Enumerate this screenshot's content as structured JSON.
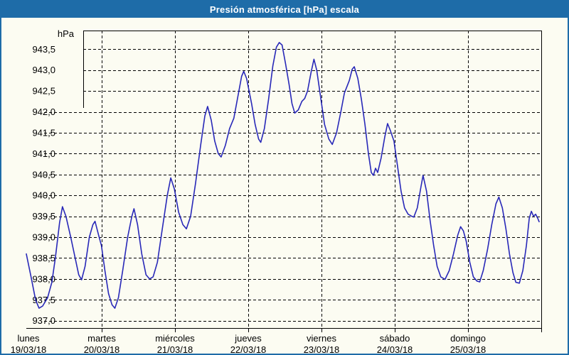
{
  "window": {
    "title": "Presión atmosférica [hPa] escala"
  },
  "colors": {
    "titlebar": "#1E6CA8",
    "border": "#1E6CA8",
    "background": "#FCFCF2",
    "line": "#2828B8",
    "grid": "#000000",
    "text": "#000000",
    "title_text": "#FFFFFF"
  },
  "chart_data": {
    "type": "line",
    "title": "Presión atmosférica [hPa] escala",
    "ylabel": "hPa",
    "unit_label": "hPa",
    "grid": true,
    "ylim": [
      936.83,
      943.95
    ],
    "xlim_days": [
      -0.03,
      6.97
    ],
    "y_ticks": [
      {
        "label": "943,5",
        "value": 943.5
      },
      {
        "label": "943,0",
        "value": 943.0
      },
      {
        "label": "942,5",
        "value": 942.5
      },
      {
        "label": "942,0",
        "value": 942.0
      },
      {
        "label": "941,5",
        "value": 941.5
      },
      {
        "label": "941,0",
        "value": 941.0
      },
      {
        "label": "940,5",
        "value": 940.5
      },
      {
        "label": "940,0",
        "value": 940.0
      },
      {
        "label": "939,5",
        "value": 939.5
      },
      {
        "label": "939,0",
        "value": 939.0
      },
      {
        "label": "938,5",
        "value": 938.5
      },
      {
        "label": "938,0",
        "value": 938.0
      },
      {
        "label": "937,5",
        "value": 937.5
      },
      {
        "label": "937,0",
        "value": 937.0
      }
    ],
    "x_ticks": [
      {
        "day": "lunes",
        "date": "19/03/18"
      },
      {
        "day": "martes",
        "date": "20/03/18"
      },
      {
        "day": "miércoles",
        "date": "21/03/18"
      },
      {
        "day": "jueves",
        "date": "22/03/18"
      },
      {
        "day": "viernes",
        "date": "23/03/18"
      },
      {
        "day": "sábado",
        "date": "24/03/18"
      },
      {
        "day": "domingo",
        "date": "25/03/18"
      }
    ],
    "series": [
      {
        "name": "Presión atmosférica [hPa]",
        "color": "#2828B8",
        "points": [
          [
            -0.029,
            938.6
          ],
          [
            0.039,
            938.02
          ],
          [
            0.097,
            937.5
          ],
          [
            0.145,
            937.3
          ],
          [
            0.193,
            937.35
          ],
          [
            0.261,
            937.55
          ],
          [
            0.319,
            937.92
          ],
          [
            0.367,
            938.5
          ],
          [
            0.425,
            939.35
          ],
          [
            0.464,
            939.73
          ],
          [
            0.512,
            939.5
          ],
          [
            0.58,
            938.98
          ],
          [
            0.638,
            938.5
          ],
          [
            0.686,
            938.1
          ],
          [
            0.725,
            937.98
          ],
          [
            0.773,
            938.3
          ],
          [
            0.831,
            939.0
          ],
          [
            0.88,
            939.3
          ],
          [
            0.909,
            939.38
          ],
          [
            0.957,
            939.05
          ],
          [
            0.996,
            938.8
          ],
          [
            1.044,
            938.2
          ],
          [
            1.093,
            937.65
          ],
          [
            1.141,
            937.38
          ],
          [
            1.18,
            937.3
          ],
          [
            1.228,
            937.55
          ],
          [
            1.286,
            938.2
          ],
          [
            1.354,
            939.0
          ],
          [
            1.412,
            939.5
          ],
          [
            1.441,
            939.68
          ],
          [
            1.489,
            939.3
          ],
          [
            1.547,
            938.6
          ],
          [
            1.605,
            938.1
          ],
          [
            1.653,
            938.0
          ],
          [
            1.702,
            938.05
          ],
          [
            1.76,
            938.4
          ],
          [
            1.827,
            939.2
          ],
          [
            1.895,
            940.0
          ],
          [
            1.943,
            940.42
          ],
          [
            1.992,
            940.15
          ],
          [
            2.05,
            939.6
          ],
          [
            2.108,
            939.3
          ],
          [
            2.156,
            939.2
          ],
          [
            2.214,
            939.5
          ],
          [
            2.282,
            940.3
          ],
          [
            2.35,
            941.2
          ],
          [
            2.408,
            941.9
          ],
          [
            2.446,
            942.13
          ],
          [
            2.495,
            941.8
          ],
          [
            2.543,
            941.3
          ],
          [
            2.591,
            941.0
          ],
          [
            2.63,
            940.92
          ],
          [
            2.688,
            941.2
          ],
          [
            2.746,
            941.6
          ],
          [
            2.804,
            941.85
          ],
          [
            2.862,
            942.4
          ],
          [
            2.91,
            942.85
          ],
          [
            2.939,
            942.97
          ],
          [
            2.978,
            942.8
          ],
          [
            3.046,
            942.2
          ],
          [
            3.094,
            941.7
          ],
          [
            3.142,
            941.35
          ],
          [
            3.171,
            941.27
          ],
          [
            3.22,
            941.6
          ],
          [
            3.278,
            942.3
          ],
          [
            3.336,
            943.1
          ],
          [
            3.384,
            943.55
          ],
          [
            3.423,
            943.66
          ],
          [
            3.462,
            943.6
          ],
          [
            3.51,
            943.15
          ],
          [
            3.558,
            942.65
          ],
          [
            3.597,
            942.2
          ],
          [
            3.635,
            941.97
          ],
          [
            3.684,
            942.05
          ],
          [
            3.732,
            942.25
          ],
          [
            3.771,
            942.32
          ],
          [
            3.81,
            942.5
          ],
          [
            3.858,
            942.95
          ],
          [
            3.897,
            943.26
          ],
          [
            3.935,
            943.0
          ],
          [
            3.984,
            942.4
          ],
          [
            4.042,
            941.7
          ],
          [
            4.1,
            941.35
          ],
          [
            4.148,
            941.22
          ],
          [
            4.206,
            941.5
          ],
          [
            4.264,
            942.0
          ],
          [
            4.313,
            942.45
          ],
          [
            4.342,
            942.58
          ],
          [
            4.38,
            942.75
          ],
          [
            4.419,
            943.02
          ],
          [
            4.448,
            943.08
          ],
          [
            4.496,
            942.8
          ],
          [
            4.545,
            942.3
          ],
          [
            4.593,
            941.7
          ],
          [
            4.641,
            941.0
          ],
          [
            4.68,
            940.55
          ],
          [
            4.709,
            940.48
          ],
          [
            4.738,
            940.65
          ],
          [
            4.767,
            940.55
          ],
          [
            4.815,
            940.9
          ],
          [
            4.864,
            941.4
          ],
          [
            4.902,
            941.72
          ],
          [
            4.941,
            941.55
          ],
          [
            4.989,
            941.3
          ],
          [
            5.038,
            940.7
          ],
          [
            5.086,
            940.1
          ],
          [
            5.134,
            939.7
          ],
          [
            5.183,
            939.55
          ],
          [
            5.231,
            939.5
          ],
          [
            5.26,
            939.48
          ],
          [
            5.308,
            939.7
          ],
          [
            5.357,
            940.2
          ],
          [
            5.386,
            940.48
          ],
          [
            5.434,
            940.1
          ],
          [
            5.483,
            939.4
          ],
          [
            5.531,
            938.8
          ],
          [
            5.579,
            938.3
          ],
          [
            5.628,
            938.05
          ],
          [
            5.686,
            937.99
          ],
          [
            5.744,
            938.2
          ],
          [
            5.802,
            938.6
          ],
          [
            5.86,
            939.05
          ],
          [
            5.899,
            939.25
          ],
          [
            5.937,
            939.15
          ],
          [
            5.976,
            938.9
          ],
          [
            6.024,
            938.4
          ],
          [
            6.073,
            938.05
          ],
          [
            6.121,
            937.95
          ],
          [
            6.16,
            937.93
          ],
          [
            6.208,
            938.2
          ],
          [
            6.266,
            938.7
          ],
          [
            6.324,
            939.3
          ],
          [
            6.382,
            939.8
          ],
          [
            6.421,
            939.96
          ],
          [
            6.469,
            939.7
          ],
          [
            6.517,
            939.2
          ],
          [
            6.566,
            938.6
          ],
          [
            6.614,
            938.15
          ],
          [
            6.653,
            937.92
          ],
          [
            6.701,
            937.9
          ],
          [
            6.749,
            938.2
          ],
          [
            6.797,
            938.8
          ],
          [
            6.836,
            939.45
          ],
          [
            6.865,
            939.62
          ],
          [
            6.894,
            939.5
          ],
          [
            6.923,
            939.55
          ],
          [
            6.952,
            939.45
          ],
          [
            6.971,
            939.37
          ]
        ]
      }
    ]
  }
}
